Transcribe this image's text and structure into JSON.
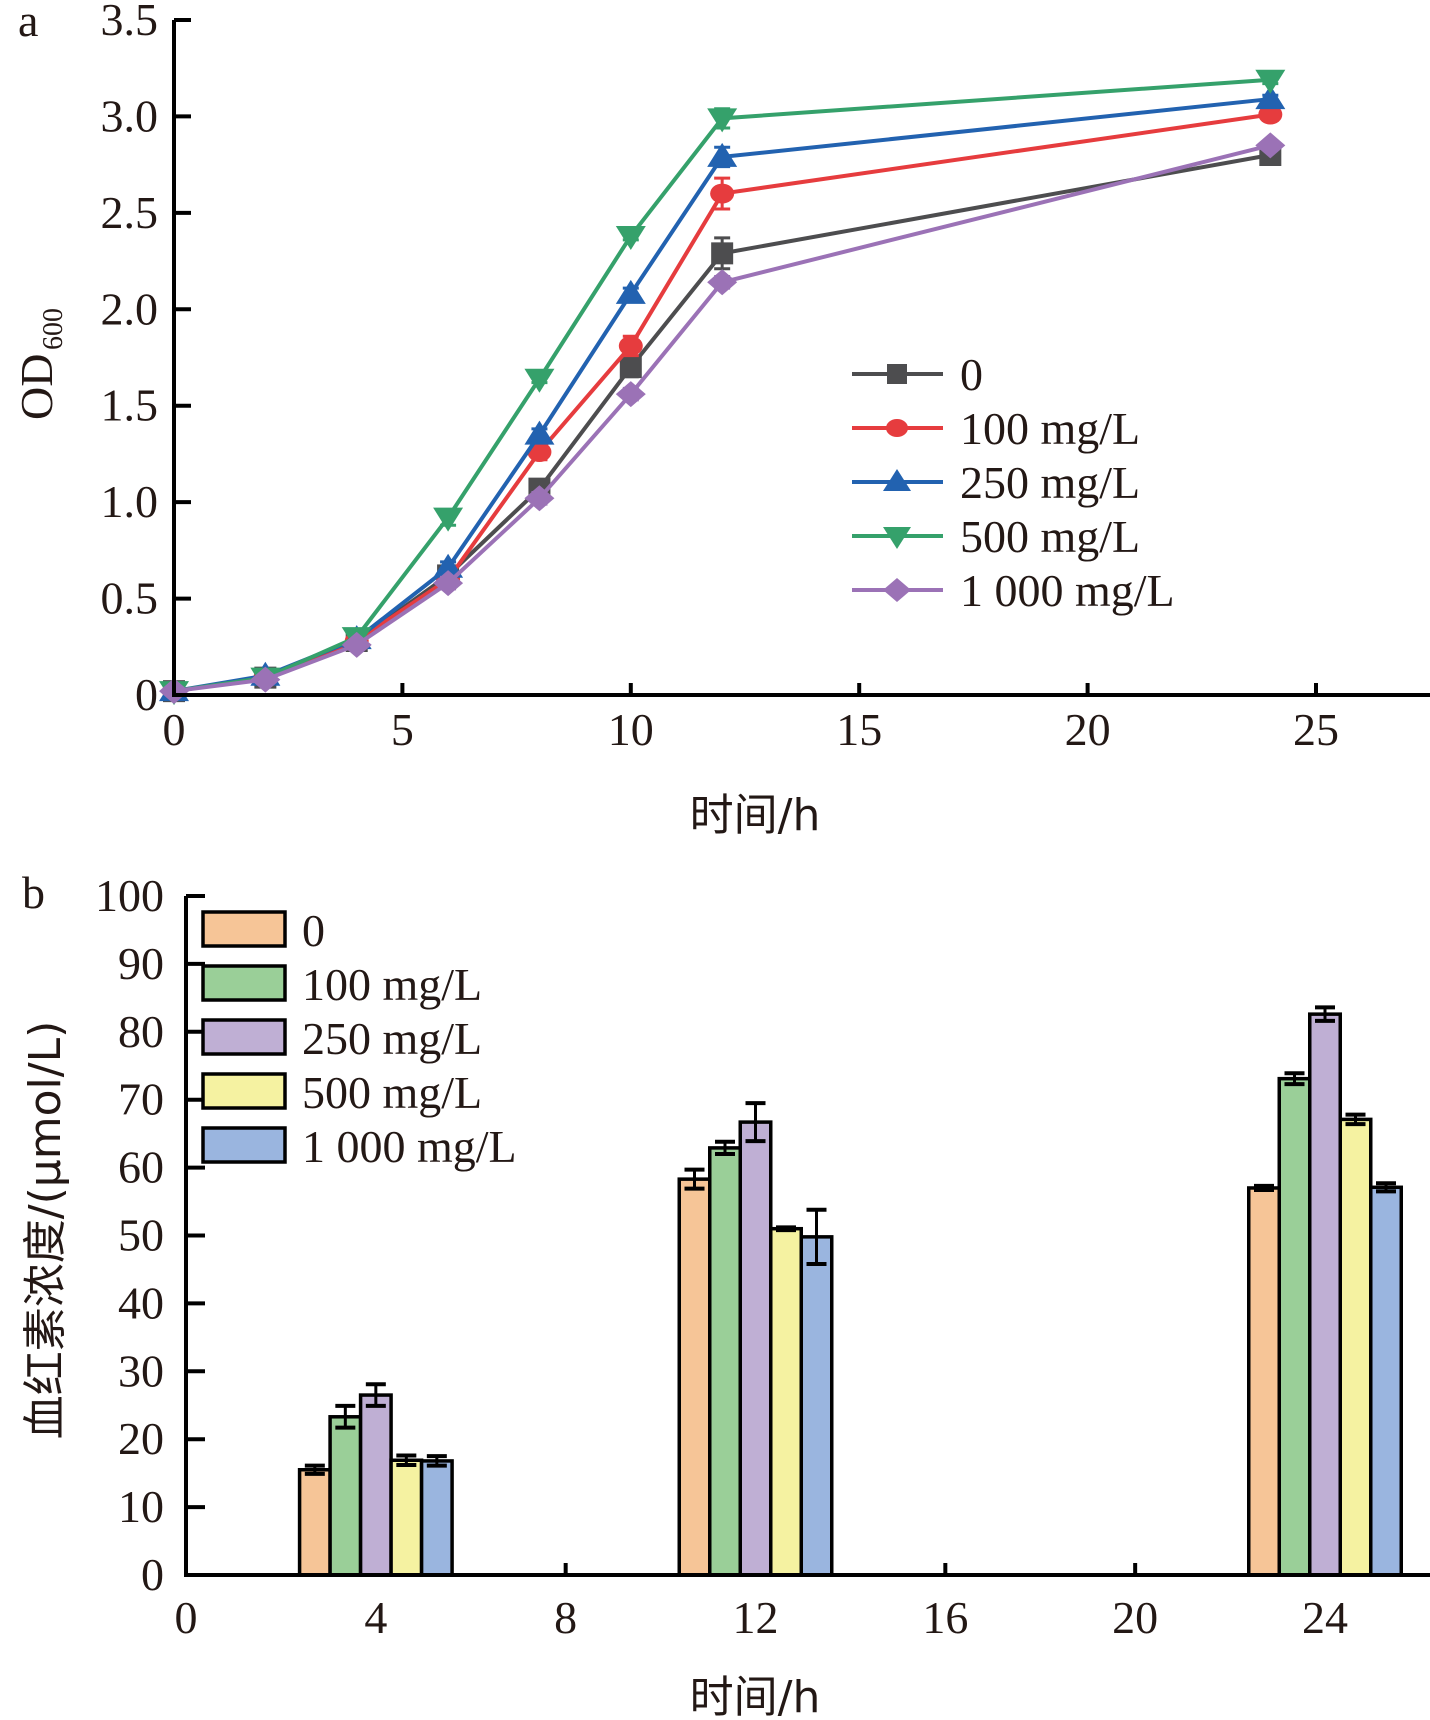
{
  "chart_data": [
    {
      "panel": "a",
      "type": "line",
      "title": "",
      "xlabel": "时间/h",
      "ylabel": "OD",
      "ylabel_sub": "600",
      "xlim": [
        0,
        27.5
      ],
      "ylim": [
        0,
        3.5
      ],
      "xticks": [
        0,
        5,
        10,
        15,
        20,
        25
      ],
      "xtick_labels": [
        "0",
        "5",
        "10",
        "15",
        "20",
        "25"
      ],
      "yticks": [
        0,
        0.5,
        1.0,
        1.5,
        2.0,
        2.5,
        3.0,
        3.5
      ],
      "ytick_labels": [
        "0",
        "0.5",
        "1.0",
        "1.5",
        "2.0",
        "2.5",
        "3.0",
        "3.5"
      ],
      "grid": false,
      "legend_position": "center-right",
      "x": [
        0,
        2,
        4,
        6,
        8,
        10,
        12,
        24
      ],
      "series": [
        {
          "name": "0",
          "color": "#4d4d4f",
          "marker": "square",
          "values": [
            0.02,
            0.09,
            0.28,
            0.62,
            1.07,
            1.7,
            2.29,
            2.8
          ],
          "errors": [
            0.01,
            0.01,
            0.02,
            0.03,
            0.03,
            0.05,
            0.08,
            0.02
          ]
        },
        {
          "name": "100 mg/L",
          "color": "#e63c3e",
          "marker": "circle",
          "values": [
            0.02,
            0.09,
            0.28,
            0.6,
            1.26,
            1.81,
            2.6,
            3.01
          ],
          "errors": [
            0.01,
            0.01,
            0.02,
            0.03,
            0.04,
            0.05,
            0.08,
            0.02
          ]
        },
        {
          "name": "250 mg/L",
          "color": "#2262b0",
          "marker": "triangle-up",
          "values": [
            0.02,
            0.1,
            0.29,
            0.66,
            1.35,
            2.08,
            2.79,
            3.09
          ],
          "errors": [
            0.01,
            0.01,
            0.02,
            0.03,
            0.03,
            0.03,
            0.05,
            0.02
          ]
        },
        {
          "name": "500 mg/L",
          "color": "#35a16b",
          "marker": "triangle-down",
          "values": [
            0.02,
            0.09,
            0.3,
            0.92,
            1.64,
            2.38,
            2.99,
            3.19
          ],
          "errors": [
            0.01,
            0.01,
            0.02,
            0.04,
            0.02,
            0.02,
            0.05,
            0.02
          ]
        },
        {
          "name": "1 000 mg/L",
          "color": "#9b72b6",
          "marker": "diamond",
          "values": [
            0.02,
            0.08,
            0.26,
            0.58,
            1.02,
            1.56,
            2.14,
            2.85
          ],
          "errors": [
            0.01,
            0.01,
            0.02,
            0.03,
            0.03,
            0.03,
            0.03,
            0.02
          ]
        }
      ]
    },
    {
      "panel": "b",
      "type": "bar",
      "title": "",
      "xlabel": "时间/h",
      "ylabel": "血红素浓度/(μmol/L)",
      "xlim": [
        0,
        26.4
      ],
      "ylim": [
        0,
        100
      ],
      "xticks": [
        0,
        4,
        8,
        12,
        16,
        20,
        24
      ],
      "xtick_labels": [
        "0",
        "4",
        "8",
        "12",
        "16",
        "20",
        "24"
      ],
      "yticks": [
        0,
        10,
        20,
        30,
        40,
        50,
        60,
        70,
        80,
        90,
        100
      ],
      "ytick_labels": [
        "0",
        "10",
        "20",
        "30",
        "40",
        "50",
        "60",
        "70",
        "80",
        "90",
        "100"
      ],
      "grid": false,
      "legend_position": "top-left",
      "categories": [
        4,
        12,
        24
      ],
      "series": [
        {
          "name": "0",
          "color": "#f6c597",
          "values": [
            15.5,
            58.3,
            57.0
          ],
          "errors": [
            0.6,
            1.4,
            0.3
          ]
        },
        {
          "name": "100 mg/L",
          "color": "#9acf98",
          "values": [
            23.3,
            62.9,
            73.1
          ],
          "errors": [
            1.6,
            0.9,
            0.8
          ]
        },
        {
          "name": "250 mg/L",
          "color": "#bfafd4",
          "values": [
            26.5,
            66.7,
            82.6
          ],
          "errors": [
            1.6,
            2.8,
            1.0
          ]
        },
        {
          "name": "500 mg/L",
          "color": "#f5f2a1",
          "values": [
            16.9,
            51.0,
            67.1
          ],
          "errors": [
            0.7,
            0.2,
            0.7
          ]
        },
        {
          "name": "1 000 mg/L",
          "color": "#9ab5df",
          "values": [
            16.8,
            49.8,
            57.1
          ],
          "errors": [
            0.7,
            4.0,
            0.6
          ]
        }
      ]
    }
  ]
}
